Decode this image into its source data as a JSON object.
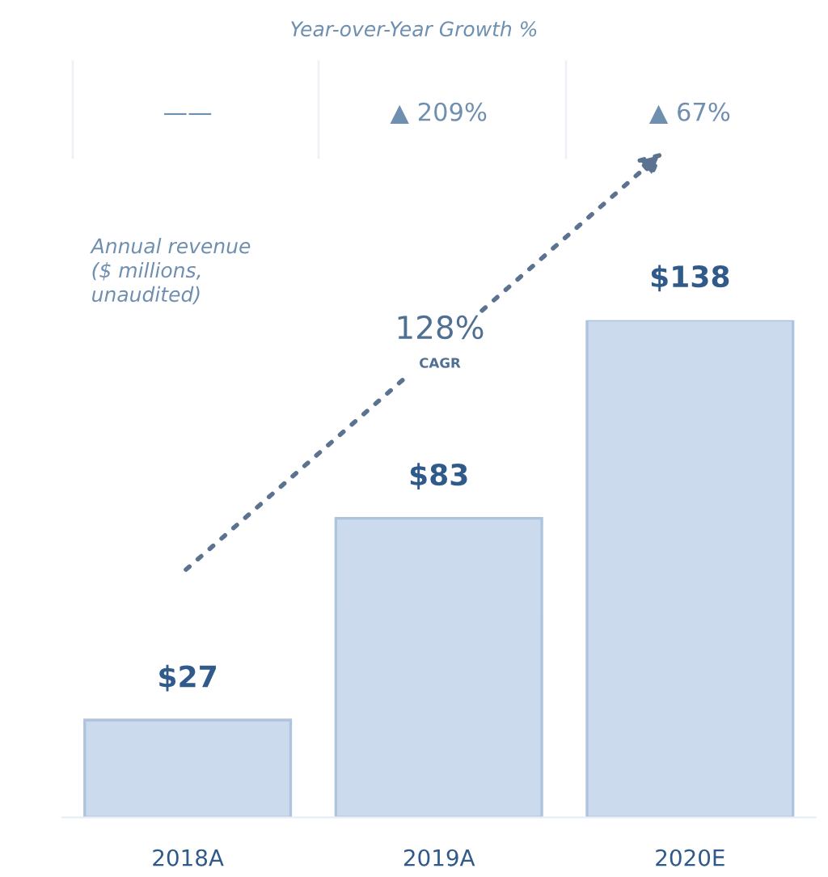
{
  "chart_data": {
    "type": "bar",
    "title": "Year-over-Year Growth %",
    "categories": [
      "2018A",
      "2019A",
      "2020E"
    ],
    "values": [
      27,
      83,
      138
    ],
    "value_labels": [
      "$27",
      "$83",
      "$138"
    ],
    "color": "#cbdbed",
    "annotations": [
      "——",
      "▲ 209%",
      "▲ 67%",
      "Annual revenue\n($ millions,\nunaudited)",
      "128%",
      "CAGR"
    ],
    "grid": false,
    "legend": false
  }
}
